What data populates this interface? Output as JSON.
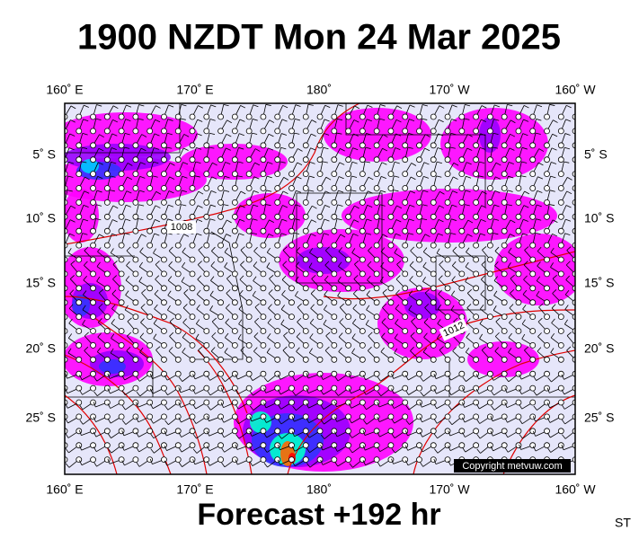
{
  "header": {
    "title": "1900 NZDT Mon 24 Mar 2025"
  },
  "map": {
    "top_labels": [
      "160˚ E",
      "170˚ E",
      "180˚",
      "170˚ W",
      "160˚ W"
    ],
    "bottom_labels": [
      "160˚ E",
      "170˚ E",
      "180˚",
      "170˚ W",
      "160˚ W"
    ],
    "left_labels": [
      "5˚ S",
      "10˚ S",
      "15˚ S",
      "20˚ S",
      "25˚ S"
    ],
    "right_labels": [
      "5˚ S",
      "10˚ S",
      "15˚ S",
      "20˚ S",
      "25˚ S"
    ],
    "contour_labels": [
      "1008",
      "1012"
    ],
    "copyright": "Copyright metvuw.com"
  },
  "footer": {
    "forecast": "Forecast +192 hr",
    "code": "ST"
  }
}
